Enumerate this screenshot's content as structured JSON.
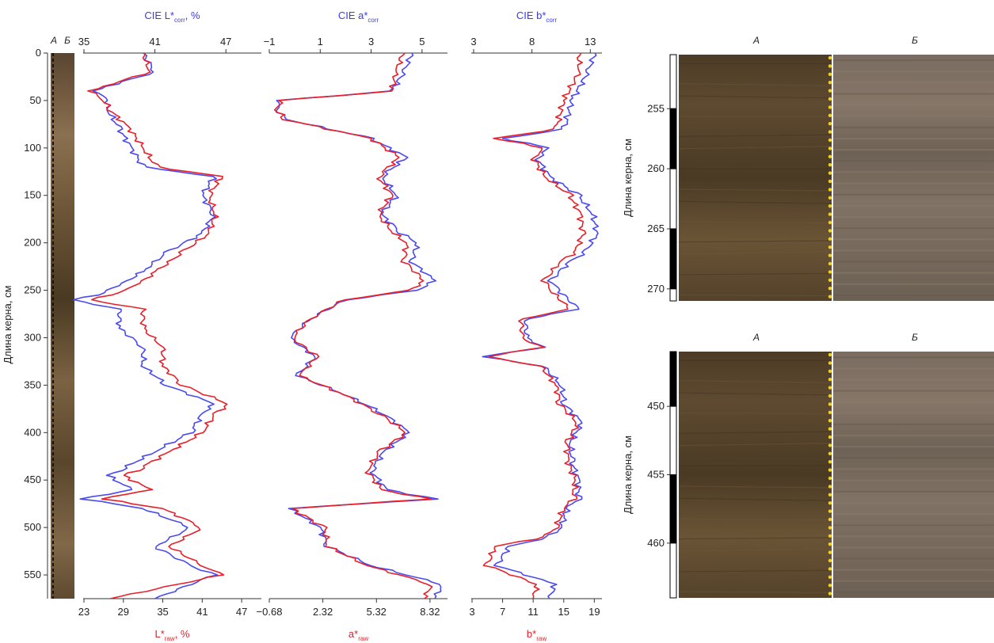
{
  "colors": {
    "blue": "#4a4af0",
    "red": "#e8202a",
    "core_dark": "#4a3a22",
    "core_light": "#6b5436",
    "scan_gray": "#7a6e62",
    "dots": "#f0d020"
  },
  "core_strip": {
    "labels": [
      "А",
      "Б"
    ]
  },
  "y_axis": {
    "label": "Длина керна, см",
    "ticks": [
      0,
      50,
      100,
      150,
      200,
      250,
      300,
      350,
      400,
      450,
      500,
      550
    ],
    "range": [
      0,
      575
    ]
  },
  "chart_data": [
    {
      "type": "line",
      "panel": "L",
      "top_axis": {
        "label": "CIE L*",
        "sub": "corr",
        "suffix": ", %",
        "ticks": [
          35,
          41,
          47
        ],
        "range": [
          35,
          50
        ]
      },
      "bottom_axis": {
        "label": "L*",
        "sub": "raw",
        "suffix": ", %",
        "ticks": [
          23,
          29,
          35,
          41,
          47
        ],
        "range": [
          23,
          50
        ]
      },
      "series": [
        {
          "name": "CIE L*corr",
          "color": "blue",
          "depth": [
            0,
            20,
            35,
            40,
            50,
            60,
            80,
            100,
            120,
            130,
            150,
            170,
            190,
            210,
            230,
            245,
            255,
            260,
            270,
            290,
            310,
            330,
            350,
            370,
            380,
            400,
            420,
            440,
            445,
            460,
            470,
            480,
            500,
            520,
            540,
            550,
            575
          ],
          "values": [
            40,
            41,
            37,
            36,
            37,
            37,
            38,
            39,
            40,
            46,
            45,
            46,
            45,
            42,
            40,
            38,
            36,
            34,
            38,
            38,
            40,
            40,
            42,
            46,
            45,
            44,
            41,
            38,
            37,
            39,
            35,
            40,
            44,
            41,
            44,
            46,
            41
          ]
        },
        {
          "name": "L*raw",
          "color": "red",
          "depth": [
            0,
            20,
            35,
            40,
            50,
            60,
            80,
            100,
            120,
            130,
            150,
            170,
            190,
            210,
            230,
            245,
            255,
            260,
            270,
            290,
            310,
            330,
            350,
            370,
            380,
            400,
            420,
            440,
            445,
            460,
            470,
            480,
            500,
            520,
            540,
            550,
            575
          ],
          "values": [
            32,
            33,
            26,
            24,
            26,
            27,
            30,
            32,
            34,
            44,
            42,
            43,
            42,
            38,
            34,
            31,
            27,
            24,
            32,
            32,
            35,
            35,
            38,
            45,
            43,
            41,
            36,
            31,
            29,
            33,
            26,
            35,
            41,
            36,
            41,
            44,
            27
          ]
        }
      ]
    },
    {
      "type": "line",
      "panel": "a",
      "top_axis": {
        "label": "CIE a*",
        "sub": "corr",
        "suffix": "",
        "ticks": [
          -1,
          1,
          3,
          5
        ],
        "range": [
          -1,
          6
        ]
      },
      "bottom_axis": {
        "label": "a*",
        "sub": "raw",
        "suffix": "",
        "ticks": [
          -0.68,
          2.32,
          5.32,
          8.32
        ],
        "range": [
          -0.68,
          9.3
        ]
      },
      "series": [
        {
          "name": "CIE a*corr",
          "color": "blue",
          "depth": [
            0,
            20,
            40,
            50,
            60,
            70,
            90,
            110,
            130,
            150,
            170,
            190,
            200,
            220,
            240,
            250,
            260,
            280,
            300,
            320,
            340,
            360,
            380,
            400,
            420,
            440,
            460,
            470,
            480,
            500,
            520,
            540,
            560,
            575
          ],
          "values": [
            4.6,
            4.3,
            3.8,
            -0.6,
            -0.7,
            -0.3,
            3,
            4.4,
            3.4,
            4,
            3.4,
            4.2,
            4.8,
            4.6,
            5.5,
            4.8,
            2,
            0.6,
            -0.2,
            0.8,
            0.1,
            2,
            3.5,
            4.5,
            3.5,
            3,
            3.6,
            5.5,
            -0.2,
            1,
            1.3,
            3,
            5.8,
            5.5
          ]
        },
        {
          "name": "a*raw",
          "color": "red",
          "depth": [
            0,
            20,
            40,
            50,
            60,
            70,
            90,
            110,
            130,
            150,
            170,
            190,
            200,
            220,
            240,
            250,
            260,
            280,
            300,
            320,
            340,
            360,
            380,
            400,
            420,
            440,
            460,
            470,
            480,
            500,
            520,
            540,
            560,
            575
          ],
          "values": [
            6.8,
            6.4,
            6.2,
            0,
            -0.3,
            0.2,
            5,
            6.6,
            5.4,
            6.2,
            5.4,
            6.3,
            7,
            6.9,
            8,
            7.2,
            3.5,
            1.6,
            0.6,
            2,
            1,
            3.5,
            5.5,
            7,
            5.5,
            4.8,
            5.6,
            8.2,
            0.6,
            2.4,
            2.6,
            4.8,
            8.4,
            8
          ]
        }
      ]
    },
    {
      "type": "line",
      "panel": "b",
      "top_axis": {
        "label": "CIE b*",
        "sub": "corr",
        "suffix": "",
        "ticks": [
          3,
          8,
          13
        ],
        "range": [
          3,
          14
        ]
      },
      "bottom_axis": {
        "label": "b*",
        "sub": "raw",
        "suffix": "",
        "ticks": [
          3,
          7,
          11,
          15,
          19
        ],
        "range": [
          3,
          20
        ]
      },
      "series": [
        {
          "name": "CIE b*corr",
          "color": "blue",
          "depth": [
            0,
            20,
            50,
            80,
            90,
            100,
            110,
            130,
            150,
            170,
            190,
            210,
            220,
            240,
            250,
            270,
            280,
            300,
            310,
            320,
            330,
            350,
            370,
            390,
            410,
            430,
            450,
            470,
            480,
            500,
            510,
            520,
            540,
            560,
            575
          ],
          "values": [
            13.4,
            12.8,
            11.4,
            10.8,
            5.5,
            9.5,
            8.4,
            9.5,
            12,
            13.2,
            13.6,
            12.6,
            11.2,
            9.6,
            10.3,
            12,
            7.5,
            7.5,
            9,
            3.8,
            9,
            10.5,
            10.8,
            12.3,
            11.3,
            11.4,
            12,
            12,
            11,
            10.5,
            9.5,
            6,
            5,
            10,
            9.5
          ]
        },
        {
          "name": "b*raw",
          "color": "red",
          "depth": [
            0,
            20,
            50,
            80,
            90,
            100,
            110,
            130,
            150,
            170,
            190,
            210,
            220,
            240,
            250,
            270,
            280,
            300,
            310,
            320,
            330,
            350,
            370,
            390,
            410,
            430,
            450,
            470,
            480,
            500,
            510,
            520,
            540,
            560,
            575
          ],
          "values": [
            17,
            17,
            15,
            14,
            6,
            12.5,
            11,
            12.5,
            15.8,
            17.2,
            17.5,
            16.5,
            14.5,
            12.5,
            13.3,
            15.8,
            9.5,
            9.5,
            12,
            5,
            12,
            14,
            14.5,
            16.8,
            15.5,
            15.5,
            16.5,
            16.2,
            15,
            14,
            12.5,
            6,
            5,
            11.5,
            11
          ]
        }
      ]
    }
  ],
  "photo_panels": [
    {
      "col_labels": [
        "А",
        "Б"
      ],
      "y_label": "Длина керна, см",
      "ticks": [
        255,
        260,
        265,
        270
      ],
      "range": [
        250.5,
        271
      ]
    },
    {
      "col_labels": [
        "А",
        "Б"
      ],
      "y_label": "Длина керна, см",
      "ticks": [
        450,
        455,
        460
      ],
      "range": [
        446,
        464
      ]
    }
  ]
}
